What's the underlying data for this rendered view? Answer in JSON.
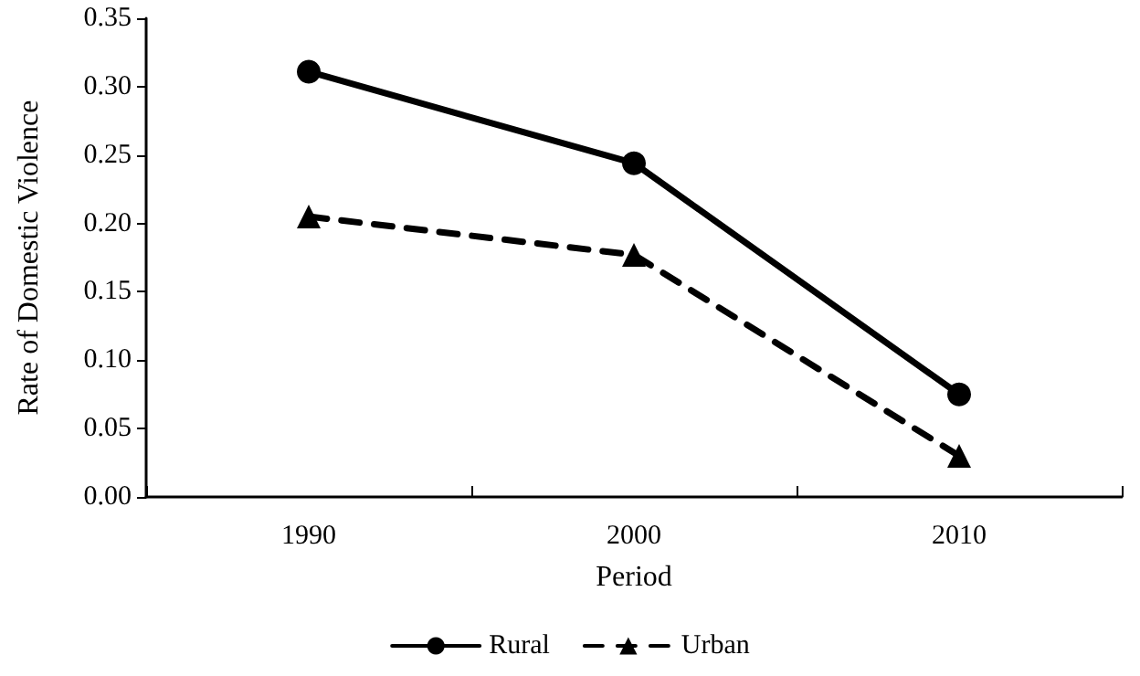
{
  "chart_data": {
    "type": "line",
    "xlabel": "Period",
    "ylabel": "Rate of Domestic Violence",
    "categories": [
      "1990",
      "2000",
      "2010"
    ],
    "series": [
      {
        "name": "Rural",
        "color": "#000000",
        "values": [
          0.311,
          0.244,
          0.075
        ],
        "marker": "circle",
        "line_style": "solid"
      },
      {
        "name": "Urban",
        "color": "#000000",
        "values": [
          0.205,
          0.177,
          0.03
        ],
        "marker": "triangle",
        "line_style": "dashed"
      }
    ],
    "ylim": [
      0,
      0.35
    ],
    "yticks": [
      {
        "value": 0,
        "label": "0.00"
      },
      {
        "value": 0.05,
        "label": "0.05"
      },
      {
        "value": 0.1,
        "label": "0.10"
      },
      {
        "value": 0.15,
        "label": "0.15"
      },
      {
        "value": 0.2,
        "label": "0.20"
      },
      {
        "value": 0.25,
        "label": "0.25"
      },
      {
        "value": 0.3,
        "label": "0.30"
      },
      {
        "value": 0.35,
        "label": "0.35"
      }
    ],
    "grid": false,
    "legend": "bottom"
  }
}
